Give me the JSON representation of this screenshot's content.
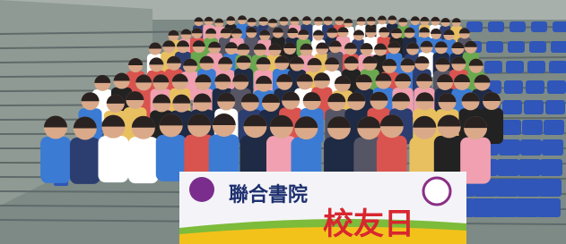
{
  "banner": {
    "line1": "聯合書院",
    "line2": "校友日"
  }
}
